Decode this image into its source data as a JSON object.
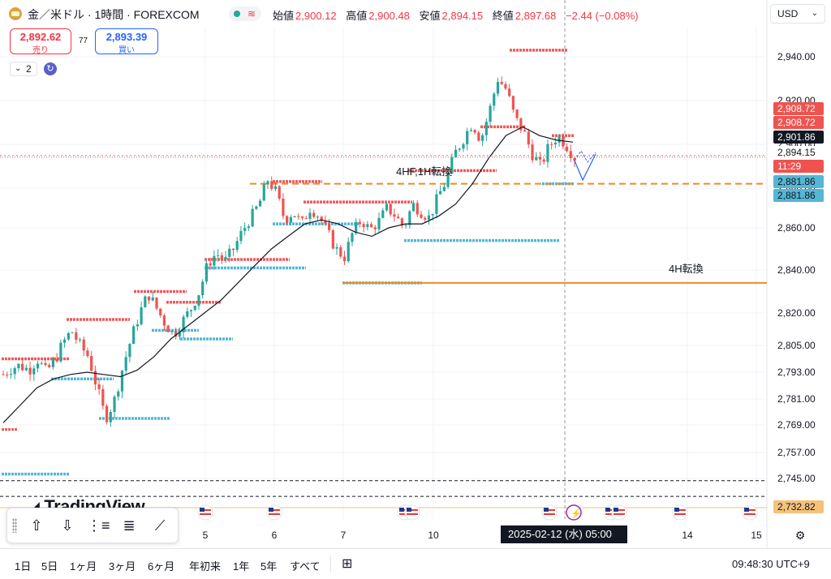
{
  "header": {
    "symbol_title": "金／米ドル · 1時間 · FOREXCOM",
    "status_icon": "market-open-dot",
    "ohlc": {
      "open_label": "始値",
      "open": "2,900.12",
      "high_label": "高値",
      "high": "2,900.48",
      "low_label": "安値",
      "low": "2,894.15",
      "close_label": "終値",
      "close": "2,897.68",
      "change": "−2.44 (−0.08%)"
    },
    "currency": "USD"
  },
  "trade": {
    "sell_price": "2,892.62",
    "sell_label": "売り",
    "spread": "77",
    "buy_price": "2,893.39",
    "buy_label": "買い"
  },
  "indicators": {
    "count": "2"
  },
  "price_labels": {
    "red_upper_1": "2,908.72",
    "red_upper_2": "2,908.72",
    "black_ma": "2,901.86",
    "current_price": "2,894.15",
    "countdown": "11:29",
    "blue_1": "2,881.86",
    "blue_2": "2,881.86",
    "orange_bottom": "2,732.82"
  },
  "annotations": {
    "mid_label": "4HF,1H転換",
    "right_label": "4H転換"
  },
  "crosshair_label": "2025-02-12 (水)   05:00",
  "toolbar_bottom": {
    "ranges": [
      "1日",
      "5日",
      "1ヶ月",
      "3ヶ月",
      "6ヶ月",
      "年初来",
      "1年",
      "5年",
      "すべて"
    ],
    "clock": "09:48:30 UTC+9"
  },
  "logo_text": "TradingView",
  "colors": {
    "up": "#26a69a",
    "down": "#ef5350",
    "resistance": "#f0595a",
    "support": "#55b6d5",
    "orange": "#f08a24",
    "ma": "#131722",
    "blue_arrow": "#2962ff"
  },
  "chart_data": {
    "type": "candlestick",
    "title": "",
    "y_ticks": [
      2940,
      2920,
      2900,
      2880,
      2860,
      2840,
      2820,
      2805,
      2793,
      2781,
      2769,
      2757,
      2745
    ],
    "y_tick_labels": [
      "2,940.00",
      "2,920.00",
      "2,900.00",
      "2,880.00",
      "2,860.00",
      "2,840.00",
      "2,820.00",
      "2,805.00",
      "2,793.00",
      "2,781.00",
      "2,769.00",
      "2,757.00",
      "2,745.00"
    ],
    "x_labels": [
      "5",
      "6",
      "7",
      "10",
      "14",
      "15"
    ],
    "ylim": [
      2732,
      2950
    ],
    "close_path": [
      2792,
      2795,
      2796,
      2794,
      2799,
      2793,
      2798,
      2806,
      2812,
      2805,
      2800,
      2786,
      2772,
      2780,
      2795,
      2808,
      2820,
      2829,
      2822,
      2815,
      2810,
      2816,
      2822,
      2830,
      2843,
      2848,
      2844,
      2850,
      2858,
      2865,
      2872,
      2884,
      2878,
      2864,
      2868,
      2862,
      2870,
      2866,
      2858,
      2850,
      2846,
      2858,
      2864,
      2859,
      2863,
      2870,
      2866,
      2860,
      2872,
      2868,
      2865,
      2876,
      2884,
      2896,
      2903,
      2910,
      2902,
      2915,
      2930,
      2925,
      2912,
      2906,
      2896,
      2890,
      2899,
      2904,
      2900,
      2894
    ],
    "moving_average": [
      2770,
      2778,
      2786,
      2790,
      2792,
      2793,
      2792,
      2791,
      2794,
      2800,
      2808,
      2814,
      2820,
      2826,
      2834,
      2842,
      2850,
      2856,
      2862,
      2864,
      2862,
      2858,
      2856,
      2860,
      2862,
      2862,
      2866,
      2872,
      2882,
      2894,
      2904,
      2908,
      2904,
      2902,
      2901
    ],
    "resistance_levels": [
      2799,
      2817,
      2830,
      2825,
      2845,
      2883,
      2873,
      2888,
      2908,
      2943
    ],
    "support_levels": [
      2747,
      2772,
      2790,
      2808,
      2841,
      2862,
      2834,
      2854,
      2882
    ],
    "horizontal_lines": [
      {
        "name": "4HF,1H転換",
        "value": 2882,
        "style": "dashed",
        "color": "orange"
      },
      {
        "name": "4H転換",
        "value": 2834,
        "style": "solid",
        "color": "orange"
      },
      {
        "name": "",
        "value": 2744,
        "style": "dashed",
        "color": "black"
      },
      {
        "name": "",
        "value": 2737,
        "style": "dashed",
        "color": "black"
      }
    ]
  }
}
